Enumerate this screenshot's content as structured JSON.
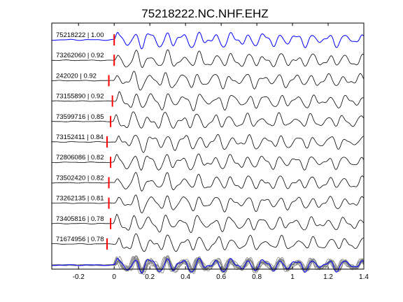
{
  "chart_data": {
    "type": "line",
    "title": "75218222.NC.NHF.EHZ",
    "xlabel": "",
    "ylabel": "",
    "xlim": [
      -0.35,
      1.4
    ],
    "x_ticks": [
      -0.2,
      0,
      0.2,
      0.4,
      0.6,
      0.8,
      1,
      1.2,
      1.4
    ],
    "x_tick_labels": [
      "-0.2",
      "0",
      "0.2",
      "0.4",
      "0.6",
      "0.8",
      "1",
      "1.2",
      "1.4"
    ],
    "grid": false,
    "legend": "none",
    "colors": {
      "reference": "#0000ff",
      "trace": "#000000",
      "pick": "#ff0000",
      "stack": "#808080"
    },
    "series": [
      {
        "label": "75218222 | 1.00",
        "event_id": "75218222",
        "correlation": 1.0,
        "pick_time": 0.0,
        "reference": true
      },
      {
        "label": "73262060 | 0.92",
        "event_id": "73262060",
        "correlation": 0.92,
        "pick_time": 0.0
      },
      {
        "label": "242020 | 0.92",
        "event_id": "242020",
        "correlation": 0.92,
        "pick_time": -0.03
      },
      {
        "label": "73155890 | 0.92",
        "event_id": "73155890",
        "correlation": 0.92,
        "pick_time": -0.01
      },
      {
        "label": "73599716 | 0.85",
        "event_id": "73599716",
        "correlation": 0.85,
        "pick_time": -0.02
      },
      {
        "label": "73152411 | 0.84",
        "event_id": "73152411",
        "correlation": 0.84,
        "pick_time": -0.04
      },
      {
        "label": "72806086 | 0.82",
        "event_id": "72806086",
        "correlation": 0.82,
        "pick_time": -0.02
      },
      {
        "label": "73502420 | 0.82",
        "event_id": "73502420",
        "correlation": 0.82,
        "pick_time": -0.03
      },
      {
        "label": "73262135 | 0.81",
        "event_id": "73262135",
        "correlation": 0.81,
        "pick_time": -0.03
      },
      {
        "label": "73405816 | 0.78",
        "event_id": "73405816",
        "correlation": 0.78,
        "pick_time": -0.02
      },
      {
        "label": "71674956 | 0.78",
        "event_id": "71674956",
        "correlation": 0.78,
        "pick_time": -0.04
      }
    ]
  }
}
